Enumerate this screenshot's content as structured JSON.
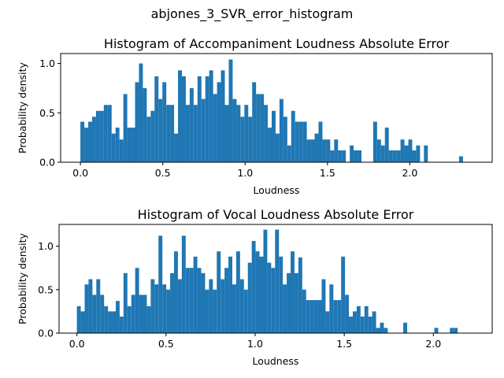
{
  "figure": {
    "suptitle": "abjones_3_SVR_error_histogram"
  },
  "chart_data": [
    {
      "type": "bar",
      "title": "Histogram of Accompaniment Loudness Absolute Error",
      "xlabel": "Loudness",
      "ylabel": "Probability density",
      "xlim": [
        -0.12,
        2.5
      ],
      "ylim": [
        0,
        1.1
      ],
      "xticks": [
        0.0,
        0.5,
        1.0,
        1.5,
        2.0
      ],
      "xtick_labels": [
        "0.0",
        "0.5",
        "1.0",
        "1.5",
        "2.0"
      ],
      "yticks": [
        0.0,
        0.5,
        1.0
      ],
      "ytick_labels": [
        "0.0",
        "0.5",
        "1.0"
      ],
      "bar_color": "#1f77b4",
      "bin_start": 0.0,
      "bin_width": 0.0237,
      "values": [
        0.41,
        0.35,
        0.41,
        0.46,
        0.52,
        0.52,
        0.58,
        0.58,
        0.29,
        0.35,
        0.23,
        0.69,
        0.35,
        0.35,
        0.81,
        1.0,
        0.75,
        0.46,
        0.52,
        0.87,
        0.64,
        0.81,
        0.58,
        0.58,
        0.29,
        0.93,
        0.87,
        0.58,
        0.75,
        0.58,
        0.87,
        0.64,
        0.87,
        0.93,
        0.69,
        0.81,
        0.93,
        0.58,
        1.04,
        0.64,
        0.58,
        0.46,
        0.58,
        0.46,
        0.81,
        0.69,
        0.69,
        0.58,
        0.35,
        0.52,
        0.29,
        0.64,
        0.46,
        0.17,
        0.52,
        0.41,
        0.41,
        0.41,
        0.23,
        0.23,
        0.29,
        0.41,
        0.23,
        0.23,
        0.12,
        0.23,
        0.12,
        0.12,
        0.0,
        0.17,
        0.12,
        0.12,
        0.0,
        0.0,
        0.0,
        0.41,
        0.23,
        0.17,
        0.35,
        0.12,
        0.12,
        0.12,
        0.23,
        0.17,
        0.23,
        0.12,
        0.17,
        0.0,
        0.17,
        0.0,
        0.0,
        0.0,
        0.0,
        0.0,
        0.0,
        0.0,
        0.0,
        0.06,
        0.0,
        0.0,
        0.0,
        0.0
      ]
    },
    {
      "type": "bar",
      "title": "Histogram of Vocal Loudness Absolute Error",
      "xlabel": "Loudness",
      "ylabel": "Probability density",
      "xlim": [
        -0.1,
        2.33
      ],
      "ylim": [
        0,
        1.25
      ],
      "xticks": [
        0.0,
        0.5,
        1.0,
        1.5,
        2.0
      ],
      "xtick_labels": [
        "0.0",
        "0.5",
        "1.0",
        "1.5",
        "2.0"
      ],
      "yticks": [
        0.0,
        0.5,
        1.0
      ],
      "ytick_labels": [
        "0.0",
        "0.5",
        "1.0"
      ],
      "bar_color": "#1f77b4",
      "bin_start": 0.0,
      "bin_width": 0.0218,
      "values": [
        0.31,
        0.25,
        0.56,
        0.62,
        0.44,
        0.62,
        0.44,
        0.31,
        0.25,
        0.25,
        0.37,
        0.19,
        0.69,
        0.31,
        0.44,
        0.75,
        0.44,
        0.44,
        0.31,
        0.62,
        0.56,
        1.12,
        0.56,
        0.5,
        0.69,
        0.94,
        0.62,
        1.12,
        0.75,
        0.75,
        0.88,
        0.75,
        0.69,
        0.5,
        0.62,
        0.5,
        0.94,
        0.62,
        0.75,
        0.88,
        0.56,
        0.94,
        0.62,
        0.5,
        0.81,
        1.06,
        0.94,
        0.88,
        1.19,
        0.81,
        0.75,
        1.19,
        0.88,
        0.56,
        0.69,
        0.94,
        0.69,
        0.87,
        0.5,
        0.38,
        0.38,
        0.38,
        0.38,
        0.62,
        0.25,
        0.56,
        0.38,
        0.38,
        0.88,
        0.44,
        0.19,
        0.25,
        0.31,
        0.19,
        0.31,
        0.19,
        0.25,
        0.06,
        0.12,
        0.06,
        0.0,
        0.0,
        0.0,
        0.0,
        0.12,
        0.0,
        0.0,
        0.0,
        0.0,
        0.0,
        0.0,
        0.0,
        0.06,
        0.0,
        0.0,
        0.0,
        0.06,
        0.06
      ]
    }
  ]
}
